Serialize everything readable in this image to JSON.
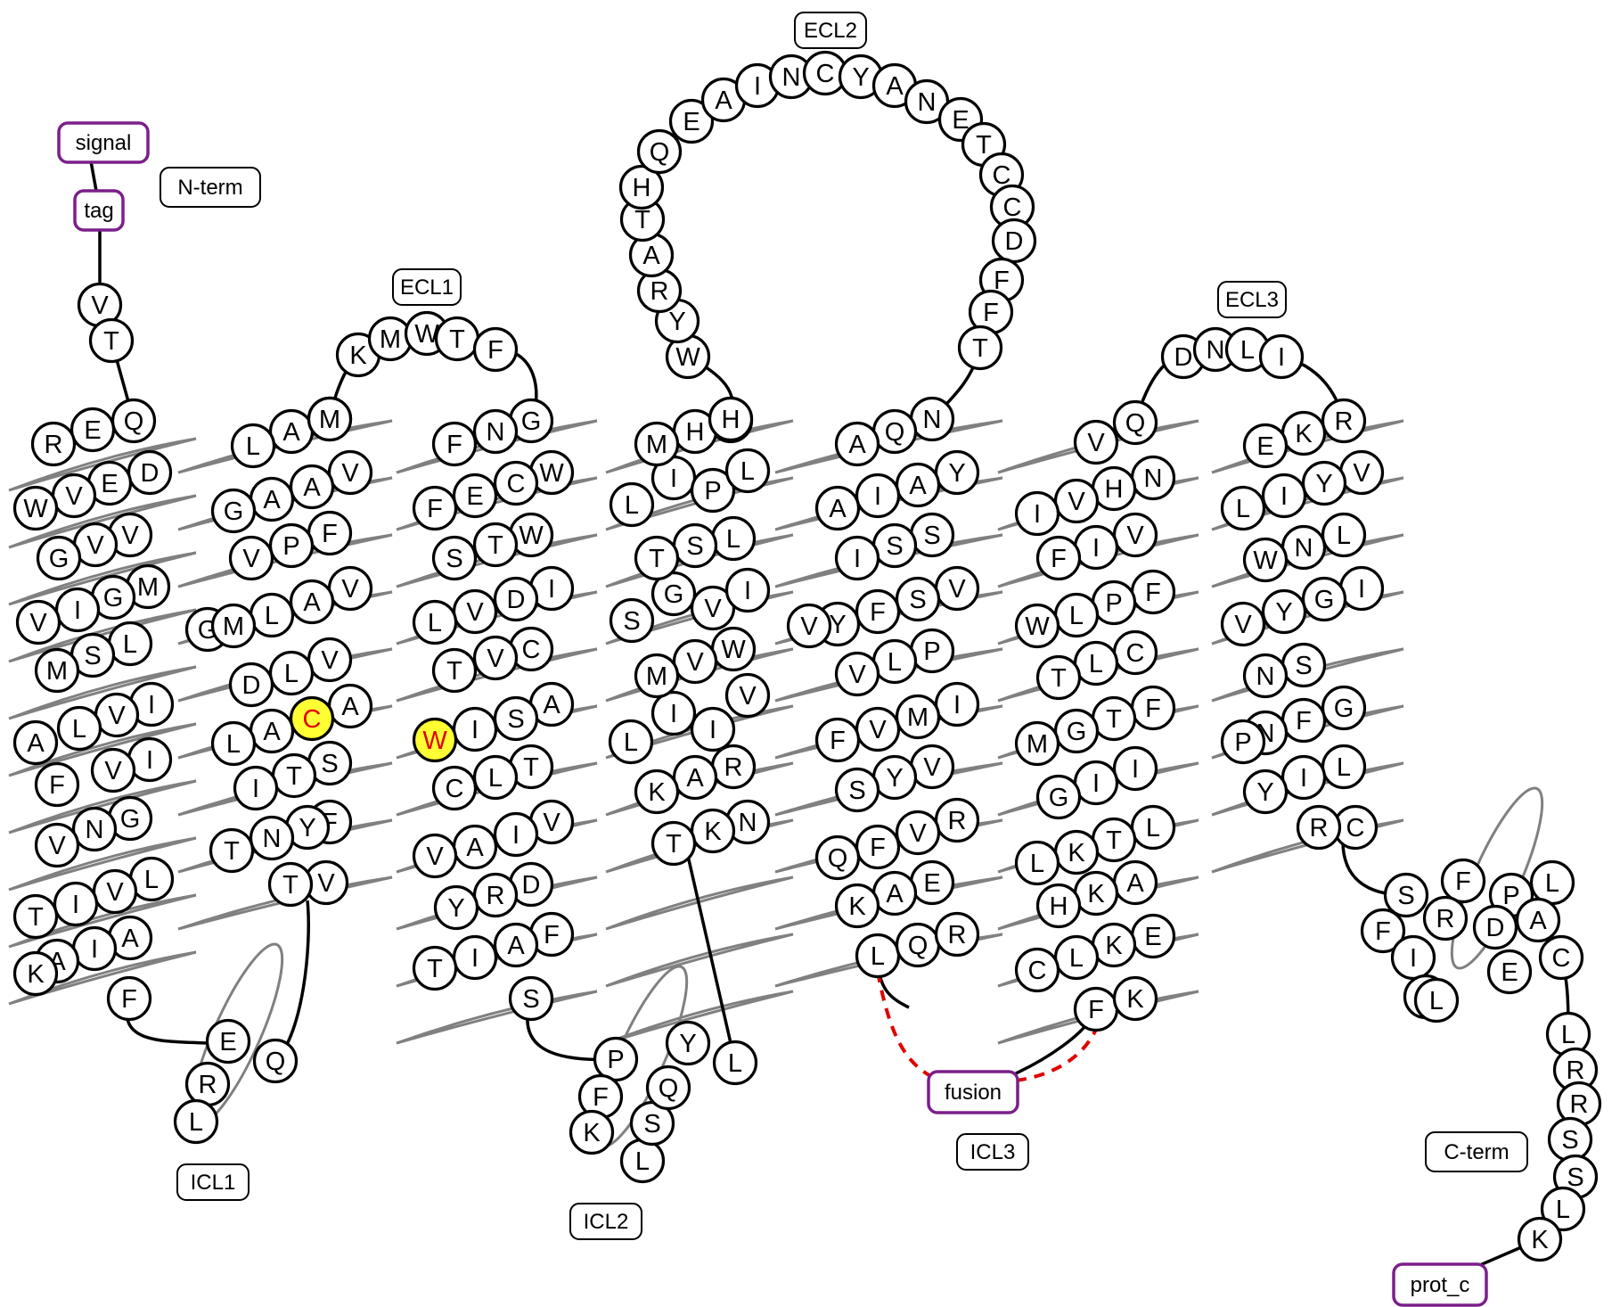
{
  "labels": {
    "n_term": "N-term",
    "c_term": "C-term",
    "ecl1": "ECL1",
    "ecl2": "ECL2",
    "ecl3": "ECL3",
    "icl1": "ICL1",
    "icl2": "ICL2",
    "icl3": "ICL3",
    "signal": "signal",
    "tag": "tag",
    "fusion": "fusion",
    "prot_c": "prot_c"
  },
  "colors": {
    "outline": "#000000",
    "helix": "#808080",
    "tag_border": "#7b1f8a",
    "highlight_fill": "#ffff33",
    "highlight_text": "#e00000",
    "fusion_link": "#e00000"
  },
  "highlighted_residues": [
    "C",
    "W"
  ],
  "segments": {
    "n_term": [
      "V",
      "T"
    ],
    "tm1": [
      "Q",
      "E",
      "R",
      "D",
      "E",
      "V",
      "W",
      "V",
      "V",
      "G",
      "M",
      "G",
      "I",
      "V",
      "L",
      "S",
      "M",
      "I",
      "V",
      "L",
      "A",
      "I",
      "V",
      "F",
      "G",
      "N",
      "V",
      "L",
      "V",
      "I",
      "T",
      "A",
      "I",
      "A",
      "K",
      "F"
    ],
    "icl1": [
      "E",
      "R",
      "L",
      "Q"
    ],
    "tm2": [
      "V",
      "T",
      "F",
      "Y",
      "N",
      "T",
      "S",
      "T",
      "I",
      "A",
      "C",
      "A",
      "L",
      "V",
      "L",
      "D",
      "V",
      "A",
      "L",
      "G",
      "M",
      "F",
      "P",
      "V",
      "V",
      "A",
      "A",
      "G",
      "C",
      "A",
      "L",
      "I",
      "M"
    ],
    "ecl1": [
      "K",
      "M",
      "W",
      "T",
      "F"
    ],
    "tm3": [
      "G",
      "N",
      "F",
      "W",
      "C",
      "E",
      "F",
      "W",
      "T",
      "S",
      "I",
      "D",
      "V",
      "L",
      "C",
      "V",
      "T",
      "A",
      "S",
      "I",
      "W",
      "T",
      "L",
      "C",
      "V",
      "I",
      "A",
      "V",
      "D",
      "R",
      "Y",
      "F",
      "A",
      "I",
      "T",
      "S"
    ],
    "icl2": [
      "P",
      "F",
      "K",
      "L",
      "S",
      "Q",
      "Y",
      "L"
    ],
    "tm4": [
      "N",
      "K",
      "T",
      "R",
      "A",
      "K",
      "L",
      "I",
      "I",
      "V",
      "W",
      "V",
      "M",
      "S",
      "G",
      "V",
      "I",
      "L",
      "S",
      "T",
      "L",
      "I",
      "P",
      "L",
      "F",
      "H",
      "M",
      "Q",
      "H"
    ],
    "ecl2": [
      "W",
      "Y",
      "R",
      "A",
      "T",
      "H",
      "Q",
      "E",
      "A",
      "I",
      "N",
      "C",
      "Y",
      "A",
      "N",
      "E",
      "T",
      "C",
      "C",
      "D",
      "F",
      "F",
      "T"
    ],
    "tm5": [
      "N",
      "Q",
      "A",
      "Y",
      "A",
      "I",
      "A",
      "S",
      "S",
      "I",
      "V",
      "S",
      "F",
      "Y",
      "V",
      "P",
      "L",
      "V",
      "I",
      "M",
      "V",
      "F",
      "V",
      "Y",
      "S",
      "R",
      "V",
      "F",
      "Q",
      "E",
      "A",
      "K",
      "L",
      "Q",
      "R"
    ],
    "icl3": [],
    "tm6": [
      "F",
      "K",
      "E",
      "K",
      "L",
      "C",
      "A",
      "K",
      "H",
      "L",
      "T",
      "K",
      "L",
      "I",
      "I",
      "G",
      "F",
      "T",
      "G",
      "M",
      "C",
      "L",
      "T",
      "F",
      "P",
      "L",
      "W",
      "V",
      "I",
      "F",
      "N",
      "H",
      "V",
      "I",
      "V",
      "Q"
    ],
    "ecl3": [
      "D",
      "N",
      "L",
      "I"
    ],
    "tm7": [
      "R",
      "K",
      "E",
      "V",
      "Y",
      "I",
      "L",
      "L",
      "N",
      "W",
      "I",
      "G",
      "Y",
      "V",
      "S",
      "N",
      "G",
      "F",
      "N",
      "P",
      "L",
      "I",
      "Y",
      "C",
      "R"
    ],
    "h8": [
      "S",
      "F",
      "P",
      "F",
      "R",
      "D",
      "I",
      "Q",
      "L",
      "A",
      "E",
      "L",
      "C"
    ],
    "c_term": [
      "L",
      "R",
      "R",
      "S",
      "S",
      "L",
      "K"
    ]
  }
}
